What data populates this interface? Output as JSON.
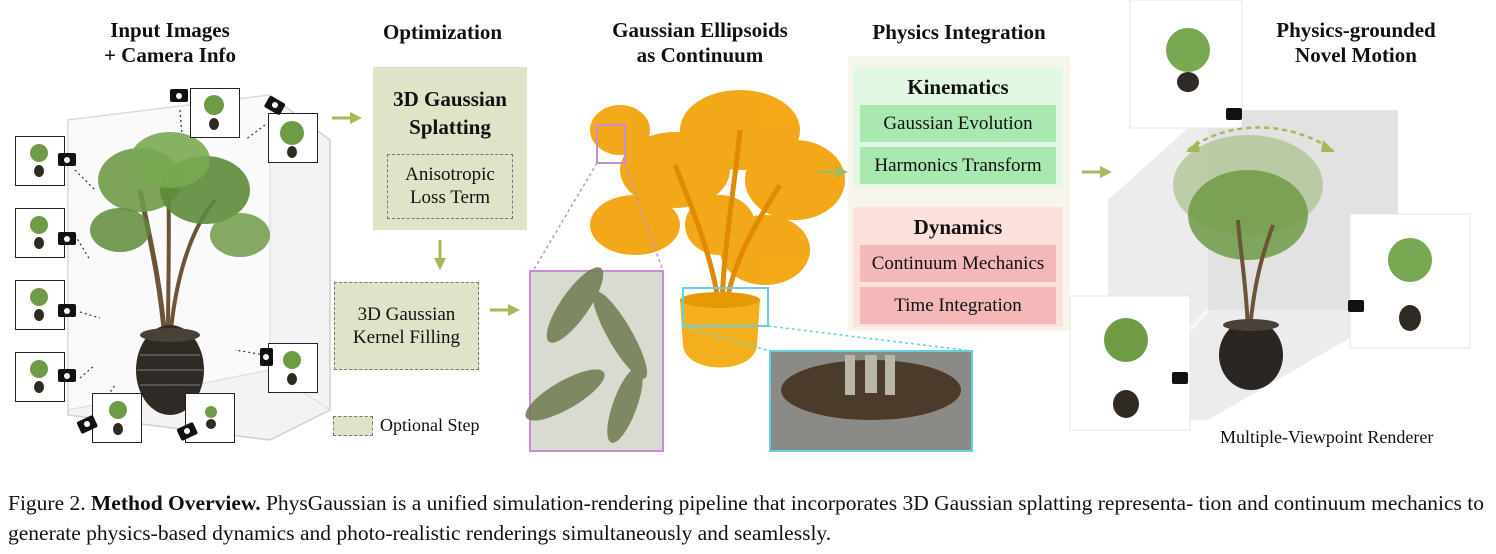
{
  "headers": {
    "input": [
      "Input Images",
      "+ Camera Info"
    ],
    "optimization": "Optimization",
    "ellipsoids": [
      "Gaussian Ellipsoids",
      "as Continuum"
    ],
    "physics": "Physics Integration",
    "novel": [
      "Physics-grounded",
      "Novel Motion"
    ]
  },
  "optimization": {
    "title": [
      "3D Gaussian",
      "Splatting"
    ],
    "loss": [
      "Anisotropic",
      "Loss Term"
    ],
    "kernel": [
      "3D Gaussian",
      "Kernel Filling"
    ],
    "legend": "Optional Step"
  },
  "physics": {
    "kinematics": {
      "title": "Kinematics",
      "items": [
        "Gaussian Evolution",
        "Harmonics Transform"
      ]
    },
    "dynamics": {
      "title": "Dynamics",
      "items": [
        "Continuum Mechanics",
        "Time Integration"
      ]
    }
  },
  "renderer_label": "Multiple-Viewpoint Renderer",
  "caption": {
    "prefix": "Figure 2. ",
    "bold": "Method Overview.",
    "text": " PhysGaussian  is a unified simulation-rendering pipeline that incorporates 3D Gaussian splatting representa- tion and continuum mechanics to generate physics-based dynamics and photo-realistic renderings simultaneously and seamlessly."
  },
  "colors": {
    "olive": "#dde4c7",
    "arrow": "#a4b95a",
    "orange": "#f2a40c",
    "purple": "#c98bd6",
    "cyan": "#66cfe0"
  }
}
